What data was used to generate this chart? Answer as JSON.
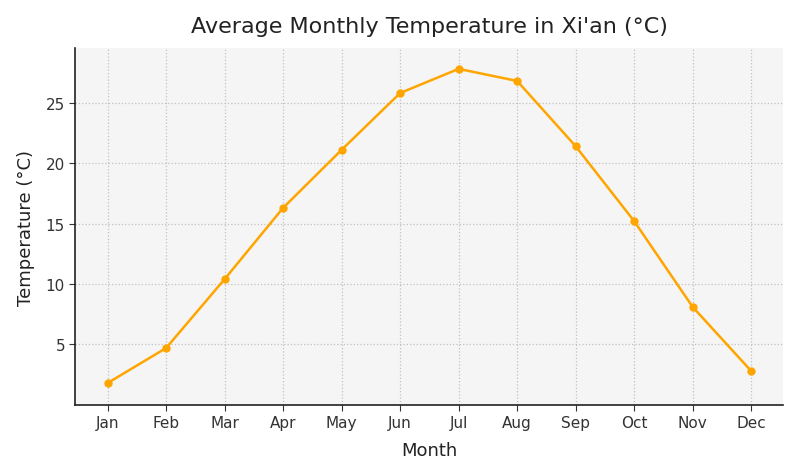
{
  "title": "Average Monthly Temperature in Xi'an (°C)",
  "xlabel": "Month",
  "ylabel": "Temperature (°C)",
  "months": [
    "Jan",
    "Feb",
    "Mar",
    "Apr",
    "May",
    "Jun",
    "Jul",
    "Aug",
    "Sep",
    "Oct",
    "Nov",
    "Dec"
  ],
  "temperatures": [
    1.8,
    4.7,
    10.4,
    16.3,
    21.1,
    25.8,
    27.8,
    26.8,
    21.4,
    15.2,
    8.1,
    2.8
  ],
  "line_color": "#FFA500",
  "marker": "o",
  "marker_size": 5,
  "line_width": 1.8,
  "ylim": [
    0,
    29.5
  ],
  "yticks": [
    5,
    10,
    15,
    20,
    25
  ],
  "grid_color": "#bbbbbb",
  "grid_linestyle": ":",
  "grid_alpha": 0.9,
  "plot_bg_color": "#f5f5f5",
  "figure_bg_color": "#ffffff",
  "title_fontsize": 16,
  "label_fontsize": 13,
  "tick_fontsize": 11,
  "left_spine_color": "#222222",
  "bottom_spine_color": "#222222"
}
